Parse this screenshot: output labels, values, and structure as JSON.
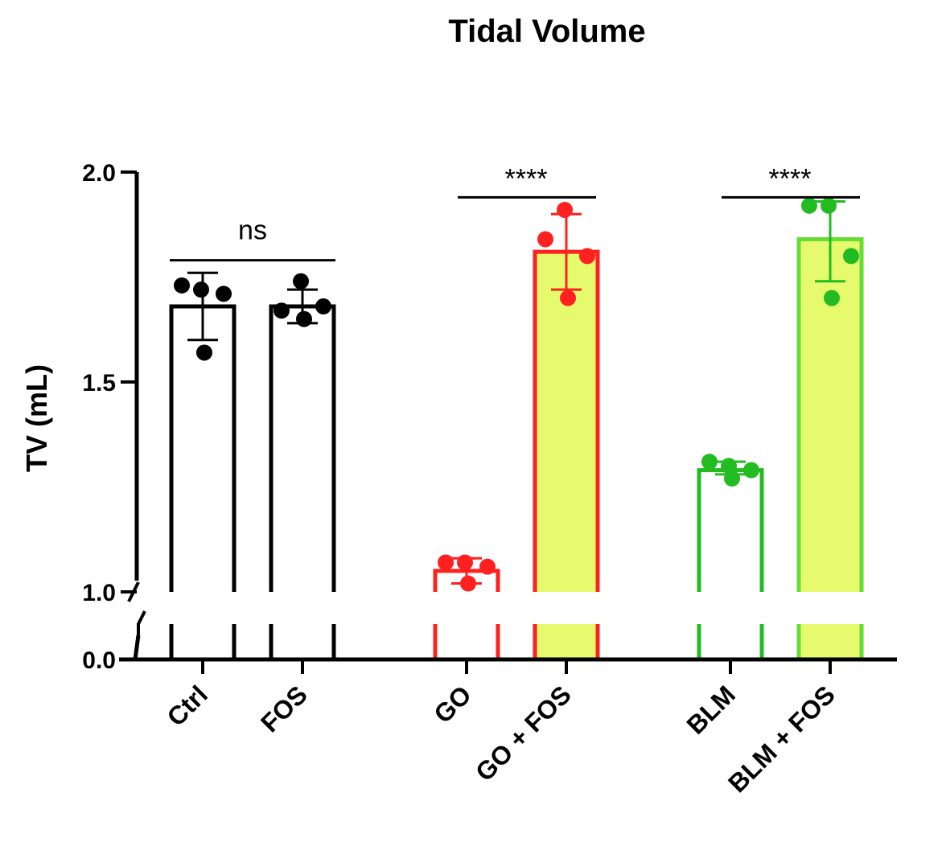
{
  "chart_data": {
    "type": "bar",
    "title": "Tidal Volume",
    "xlabel": "",
    "ylabel": "TV (mL)",
    "ylim": [
      0,
      2.0
    ],
    "y_axis_break": [
      0.0,
      1.0
    ],
    "yticks": [
      {
        "value": 0.0,
        "label": "0.0"
      },
      {
        "value": 1.0,
        "label": "1.0"
      },
      {
        "value": 1.5,
        "label": "1.5"
      },
      {
        "value": 2.0,
        "label": "2.0"
      }
    ],
    "grid": false,
    "legend": "none",
    "bars": [
      {
        "category": "Ctrl",
        "mean": 1.68,
        "error_low": 1.6,
        "error_high": 1.76,
        "points": [
          1.73,
          1.72,
          1.71,
          1.57
        ],
        "stroke": "#000000",
        "fill": "#ffffff",
        "error_color": "#000000",
        "point_color": "#000000"
      },
      {
        "category": "FOS",
        "mean": 1.68,
        "error_low": 1.64,
        "error_high": 1.72,
        "points": [
          1.67,
          1.74,
          1.68,
          1.65
        ],
        "stroke": "#000000",
        "fill": "#ffffff",
        "error_color": "#000000",
        "point_color": "#000000"
      },
      {
        "category": "GO",
        "mean": 1.05,
        "error_low": 1.02,
        "error_high": 1.08,
        "points": [
          1.07,
          1.07,
          1.06,
          1.02
        ],
        "stroke": "#ff2020",
        "fill": "#ffffff",
        "error_color": "#ff2020",
        "point_color": "#ff2020"
      },
      {
        "category": "GO + FOS",
        "mean": 1.81,
        "error_low": 1.72,
        "error_high": 1.9,
        "points": [
          1.84,
          1.91,
          1.8,
          1.7
        ],
        "stroke": "#ff2020",
        "fill": "#e6fa6e",
        "error_color": "#ff2020",
        "point_color": "#ff2020"
      },
      {
        "category": "BLM",
        "mean": 1.29,
        "error_low": 1.28,
        "error_high": 1.31,
        "points": [
          1.31,
          1.3,
          1.29,
          1.27
        ],
        "stroke": "#22bb22",
        "fill": "#ffffff",
        "error_color": "#22bb22",
        "point_color": "#22bb22"
      },
      {
        "category": "BLM + FOS",
        "mean": 1.84,
        "error_low": 1.74,
        "error_high": 1.93,
        "points": [
          1.92,
          1.92,
          1.8,
          1.7
        ],
        "stroke": "#66dd33",
        "fill": "#e6fa6e",
        "error_color": "#22bb22",
        "point_color": "#22bb22"
      }
    ],
    "significance": [
      {
        "from": 0,
        "to": 1,
        "label": "ns",
        "y": 1.79
      },
      {
        "from": 2,
        "to": 3,
        "label": "****",
        "y": 1.94
      },
      {
        "from": 4,
        "to": 5,
        "label": "****",
        "y": 1.94
      }
    ]
  }
}
